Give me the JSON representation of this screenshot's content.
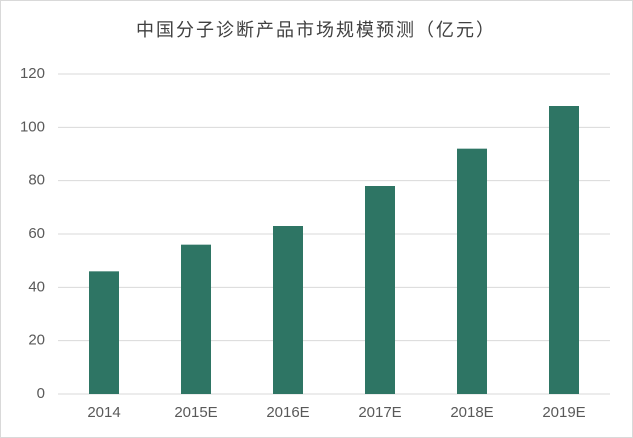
{
  "chart_data": {
    "type": "bar",
    "title": "中国分子诊断产品市场规模预测（亿元）",
    "categories": [
      "2014",
      "2015E",
      "2016E",
      "2017E",
      "2018E",
      "2019E"
    ],
    "values": [
      46,
      56,
      63,
      78,
      92,
      108
    ],
    "color": "#2e7564",
    "ylim": [
      0,
      120
    ],
    "yticks": [
      0,
      20,
      40,
      60,
      80,
      100,
      120
    ],
    "grid": true
  }
}
